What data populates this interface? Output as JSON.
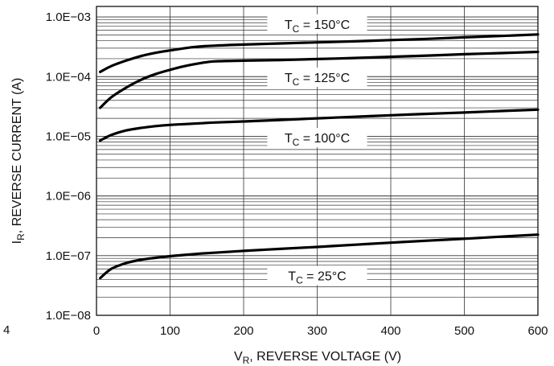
{
  "chart_data": {
    "type": "line",
    "x_label_main": "V",
    "x_label_sub": "R",
    "x_label_rest": ", REVERSE VOLTAGE (V)",
    "y_label_main": "I",
    "y_label_sub": "R",
    "y_label_rest": ", REVERSE CURRENT (A)",
    "xlim": [
      0,
      600
    ],
    "ylim": [
      1e-08,
      0.0015
    ],
    "y_scale": "log",
    "grid": true,
    "x_ticks": [
      0,
      100,
      200,
      300,
      400,
      500,
      600
    ],
    "x_tick_labels": [
      "0",
      "100",
      "200",
      "300",
      "400",
      "500",
      "600"
    ],
    "y_ticks": [
      1e-08,
      1e-07,
      1e-06,
      1e-05,
      0.0001,
      0.001
    ],
    "y_tick_labels": [
      "1.0E−08",
      "1.0E−07",
      "1.0E−06",
      "1.0E−05",
      "1.0E−04",
      "1.0E−03"
    ],
    "corner_label": "4",
    "series": [
      {
        "label_main": "T",
        "label_sub": "C",
        "label_rest": " = 150°C",
        "label_x": 300,
        "label_y": 0.00074,
        "x": [
          5,
          20,
          40,
          60,
          80,
          100,
          120,
          140,
          160,
          200,
          250,
          300,
          350,
          400,
          450,
          500,
          550,
          600
        ],
        "y": [
          0.00012,
          0.00015,
          0.000185,
          0.00022,
          0.00025,
          0.000275,
          0.0003,
          0.00032,
          0.00033,
          0.000345,
          0.00036,
          0.000375,
          0.00039,
          0.00041,
          0.00043,
          0.000455,
          0.00048,
          0.00051
        ]
      },
      {
        "label_main": "T",
        "label_sub": "C",
        "label_rest": " = 125°C",
        "label_x": 300,
        "label_y": 9.5e-05,
        "x": [
          5,
          20,
          40,
          60,
          80,
          100,
          120,
          140,
          160,
          200,
          250,
          300,
          350,
          400,
          450,
          500,
          550,
          600
        ],
        "y": [
          3e-05,
          4.5e-05,
          6.5e-05,
          8.8e-05,
          0.00011,
          0.00013,
          0.00015,
          0.000167,
          0.00018,
          0.000185,
          0.00019,
          0.000197,
          0.000205,
          0.000215,
          0.000225,
          0.000237,
          0.000248,
          0.00026
        ]
      },
      {
        "label_main": "T",
        "label_sub": "C",
        "label_rest": " = 100°C",
        "label_x": 300,
        "label_y": 9.2e-06,
        "x": [
          5,
          20,
          40,
          60,
          80,
          100,
          120,
          140,
          160,
          200,
          250,
          300,
          350,
          400,
          450,
          500,
          550,
          600
        ],
        "y": [
          8.5e-06,
          1.05e-05,
          1.25e-05,
          1.38e-05,
          1.48e-05,
          1.55e-05,
          1.6e-05,
          1.65e-05,
          1.7e-05,
          1.77e-05,
          1.88e-05,
          2e-05,
          2.12e-05,
          2.25e-05,
          2.38e-05,
          2.5e-05,
          2.65e-05,
          2.8e-05
        ]
      },
      {
        "label_main": "T",
        "label_sub": "C",
        "label_rest": " = 25°C",
        "label_x": 300,
        "label_y": 4.5e-08,
        "x": [
          5,
          20,
          40,
          60,
          80,
          100,
          120,
          140,
          160,
          200,
          250,
          300,
          350,
          400,
          450,
          500,
          550,
          600
        ],
        "y": [
          4.2e-08,
          6e-08,
          7.5e-08,
          8.5e-08,
          9.2e-08,
          9.8e-08,
          1.03e-07,
          1.08e-07,
          1.12e-07,
          1.2e-07,
          1.3e-07,
          1.4e-07,
          1.52e-07,
          1.65e-07,
          1.78e-07,
          1.92e-07,
          2.08e-07,
          2.25e-07
        ]
      }
    ]
  }
}
